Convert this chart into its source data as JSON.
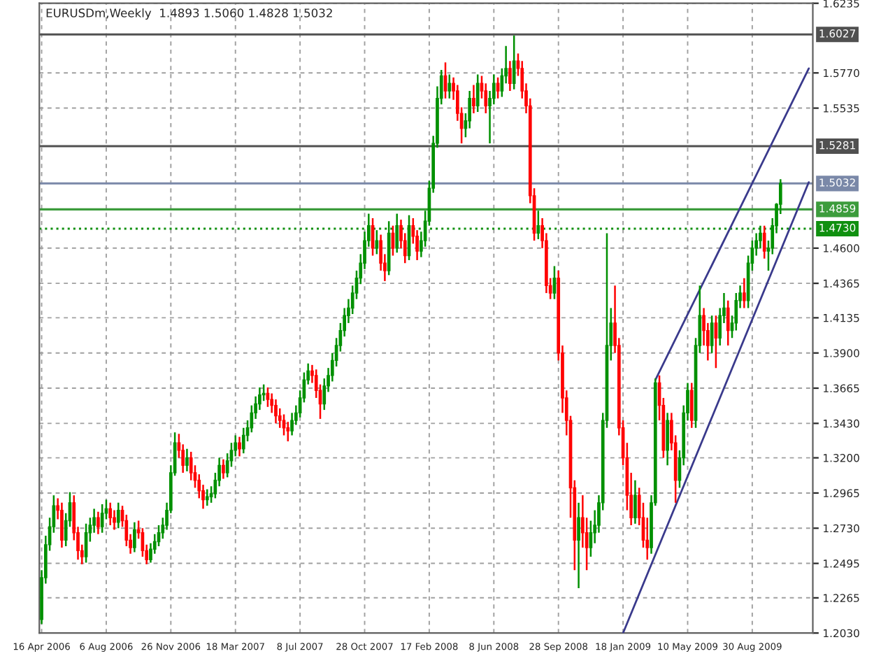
{
  "chart_data": {
    "type": "candlestick",
    "title": "EURUSDm,Weekly  1.4893 1.5060 1.4828 1.5032",
    "x": [
      "2006-04-16",
      "2006-04-23",
      "2006-04-30",
      "2006-05-07",
      "2006-05-14",
      "2006-05-21",
      "2006-05-28",
      "2006-06-04",
      "2006-06-11",
      "2006-06-18",
      "2006-06-25",
      "2006-07-02",
      "2006-07-09",
      "2006-07-16",
      "2006-07-23",
      "2006-07-30",
      "2006-08-06",
      "2006-08-13",
      "2006-08-20",
      "2006-08-27",
      "2006-09-03",
      "2006-09-10",
      "2006-09-17",
      "2006-09-24",
      "2006-10-01",
      "2006-10-08",
      "2006-10-15",
      "2006-10-22",
      "2006-10-29",
      "2006-11-05",
      "2006-11-12",
      "2006-11-19",
      "2006-11-26",
      "2006-12-03",
      "2006-12-10",
      "2006-12-17",
      "2006-12-24",
      "2006-12-31",
      "2007-01-07",
      "2007-01-14",
      "2007-01-21",
      "2007-01-28",
      "2007-02-04",
      "2007-02-11",
      "2007-02-18",
      "2007-02-25",
      "2007-03-04",
      "2007-03-11",
      "2007-03-18",
      "2007-03-25",
      "2007-04-01",
      "2007-04-08",
      "2007-04-15",
      "2007-04-22",
      "2007-04-29",
      "2007-05-06",
      "2007-05-13",
      "2007-05-20",
      "2007-05-27",
      "2007-06-03",
      "2007-06-10",
      "2007-06-17",
      "2007-06-24",
      "2007-07-01",
      "2007-07-08",
      "2007-07-15",
      "2007-07-22",
      "2007-07-29",
      "2007-08-05",
      "2007-08-12",
      "2007-08-19",
      "2007-08-26",
      "2007-09-02",
      "2007-09-09",
      "2007-09-16",
      "2007-09-23",
      "2007-09-30",
      "2007-10-07",
      "2007-10-14",
      "2007-10-21",
      "2007-10-28",
      "2007-11-04",
      "2007-11-11",
      "2007-11-18",
      "2007-11-25",
      "2007-12-02",
      "2007-12-09",
      "2007-12-16",
      "2007-12-23",
      "2007-12-30",
      "2008-01-06",
      "2008-01-13",
      "2008-01-20",
      "2008-01-27",
      "2008-02-03",
      "2008-02-10",
      "2008-02-17",
      "2008-02-24",
      "2008-03-02",
      "2008-03-09",
      "2008-03-16",
      "2008-03-23",
      "2008-03-30",
      "2008-04-06",
      "2008-04-13",
      "2008-04-20",
      "2008-04-27",
      "2008-05-04",
      "2008-05-11",
      "2008-05-18",
      "2008-05-25",
      "2008-06-01",
      "2008-06-08",
      "2008-06-15",
      "2008-06-22",
      "2008-06-29",
      "2008-07-06",
      "2008-07-13",
      "2008-07-20",
      "2008-07-27",
      "2008-08-03",
      "2008-08-10",
      "2008-08-17",
      "2008-08-24",
      "2008-08-31",
      "2008-09-07",
      "2008-09-14",
      "2008-09-21",
      "2008-09-28",
      "2008-10-05",
      "2008-10-12",
      "2008-10-19",
      "2008-10-26",
      "2008-11-02",
      "2008-11-09",
      "2008-11-16",
      "2008-11-23",
      "2008-11-30",
      "2008-12-07",
      "2008-12-14",
      "2008-12-21",
      "2008-12-28",
      "2009-01-04",
      "2009-01-11",
      "2009-01-18",
      "2009-01-25",
      "2009-02-01",
      "2009-02-08",
      "2009-02-15",
      "2009-02-22",
      "2009-03-01",
      "2009-03-08",
      "2009-03-15",
      "2009-03-22",
      "2009-03-29",
      "2009-04-05",
      "2009-04-12",
      "2009-04-19",
      "2009-04-26",
      "2009-05-03",
      "2009-05-10",
      "2009-05-17",
      "2009-05-24",
      "2009-05-31",
      "2009-06-07",
      "2009-06-14",
      "2009-06-21",
      "2009-06-28",
      "2009-07-05",
      "2009-07-12",
      "2009-07-19",
      "2009-07-26",
      "2009-08-02",
      "2009-08-09",
      "2009-08-16",
      "2009-08-23",
      "2009-08-30",
      "2009-09-06",
      "2009-09-13",
      "2009-09-20",
      "2009-09-27",
      "2009-10-04",
      "2009-10-11",
      "2009-10-18"
    ],
    "ohlc": [
      [
        1.212,
        1.245,
        1.209,
        1.24
      ],
      [
        1.24,
        1.268,
        1.236,
        1.262
      ],
      [
        1.262,
        1.28,
        1.258,
        1.274
      ],
      [
        1.274,
        1.295,
        1.27,
        1.288
      ],
      [
        1.288,
        1.293,
        1.279,
        1.285
      ],
      [
        1.285,
        1.29,
        1.26,
        1.265
      ],
      [
        1.265,
        1.283,
        1.261,
        1.278
      ],
      [
        1.278,
        1.297,
        1.274,
        1.29
      ],
      [
        1.29,
        1.295,
        1.265,
        1.27
      ],
      [
        1.27,
        1.274,
        1.252,
        1.258
      ],
      [
        1.258,
        1.262,
        1.249,
        1.254
      ],
      [
        1.254,
        1.276,
        1.25,
        1.27
      ],
      [
        1.27,
        1.28,
        1.264,
        1.275
      ],
      [
        1.275,
        1.286,
        1.27,
        1.28
      ],
      [
        1.28,
        1.284,
        1.269,
        1.274
      ],
      [
        1.274,
        1.289,
        1.27,
        1.283
      ],
      [
        1.283,
        1.292,
        1.279,
        1.286
      ],
      [
        1.286,
        1.29,
        1.275,
        1.28
      ],
      [
        1.28,
        1.285,
        1.272,
        1.277
      ],
      [
        1.277,
        1.29,
        1.273,
        1.285
      ],
      [
        1.285,
        1.288,
        1.274,
        1.278
      ],
      [
        1.278,
        1.282,
        1.261,
        1.265
      ],
      [
        1.265,
        1.269,
        1.256,
        1.26
      ],
      [
        1.26,
        1.277,
        1.257,
        1.272
      ],
      [
        1.272,
        1.278,
        1.266,
        1.27
      ],
      [
        1.27,
        1.273,
        1.254,
        1.258
      ],
      [
        1.258,
        1.262,
        1.249,
        1.252
      ],
      [
        1.252,
        1.263,
        1.25,
        1.259
      ],
      [
        1.259,
        1.269,
        1.256,
        1.264
      ],
      [
        1.264,
        1.275,
        1.261,
        1.27
      ],
      [
        1.27,
        1.28,
        1.266,
        1.275
      ],
      [
        1.275,
        1.29,
        1.272,
        1.285
      ],
      [
        1.285,
        1.315,
        1.283,
        1.31
      ],
      [
        1.31,
        1.337,
        1.308,
        1.33
      ],
      [
        1.33,
        1.336,
        1.32,
        1.325
      ],
      [
        1.325,
        1.329,
        1.31,
        1.315
      ],
      [
        1.315,
        1.326,
        1.311,
        1.32
      ],
      [
        1.32,
        1.324,
        1.305,
        1.31
      ],
      [
        1.31,
        1.315,
        1.3,
        1.305
      ],
      [
        1.305,
        1.309,
        1.293,
        1.298
      ],
      [
        1.298,
        1.302,
        1.286,
        1.292
      ],
      [
        1.292,
        1.299,
        1.288,
        1.294
      ],
      [
        1.294,
        1.301,
        1.29,
        1.296
      ],
      [
        1.296,
        1.31,
        1.293,
        1.305
      ],
      [
        1.305,
        1.32,
        1.301,
        1.315
      ],
      [
        1.315,
        1.319,
        1.306,
        1.31
      ],
      [
        1.31,
        1.323,
        1.307,
        1.318
      ],
      [
        1.318,
        1.33,
        1.314,
        1.325
      ],
      [
        1.325,
        1.335,
        1.321,
        1.33
      ],
      [
        1.33,
        1.334,
        1.321,
        1.326
      ],
      [
        1.326,
        1.34,
        1.323,
        1.335
      ],
      [
        1.335,
        1.345,
        1.331,
        1.34
      ],
      [
        1.34,
        1.355,
        1.337,
        1.35
      ],
      [
        1.35,
        1.361,
        1.346,
        1.356
      ],
      [
        1.356,
        1.367,
        1.352,
        1.362
      ],
      [
        1.362,
        1.369,
        1.358,
        1.363
      ],
      [
        1.363,
        1.367,
        1.354,
        1.359
      ],
      [
        1.359,
        1.363,
        1.35,
        1.355
      ],
      [
        1.355,
        1.359,
        1.343,
        1.348
      ],
      [
        1.348,
        1.353,
        1.34,
        1.345
      ],
      [
        1.345,
        1.349,
        1.335,
        1.34
      ],
      [
        1.34,
        1.344,
        1.331,
        1.338
      ],
      [
        1.338,
        1.35,
        1.335,
        1.345
      ],
      [
        1.345,
        1.355,
        1.342,
        1.35
      ],
      [
        1.35,
        1.365,
        1.347,
        1.36
      ],
      [
        1.36,
        1.377,
        1.357,
        1.372
      ],
      [
        1.372,
        1.383,
        1.369,
        1.378
      ],
      [
        1.378,
        1.382,
        1.37,
        1.375
      ],
      [
        1.375,
        1.379,
        1.36,
        1.365
      ],
      [
        1.365,
        1.369,
        1.346,
        1.356
      ],
      [
        1.356,
        1.373,
        1.352,
        1.368
      ],
      [
        1.368,
        1.38,
        1.364,
        1.375
      ],
      [
        1.375,
        1.39,
        1.371,
        1.385
      ],
      [
        1.385,
        1.4,
        1.381,
        1.395
      ],
      [
        1.395,
        1.41,
        1.391,
        1.405
      ],
      [
        1.405,
        1.42,
        1.401,
        1.415
      ],
      [
        1.415,
        1.426,
        1.41,
        1.42
      ],
      [
        1.42,
        1.435,
        1.416,
        1.43
      ],
      [
        1.43,
        1.445,
        1.426,
        1.44
      ],
      [
        1.44,
        1.456,
        1.436,
        1.45
      ],
      [
        1.45,
        1.471,
        1.446,
        1.465
      ],
      [
        1.465,
        1.483,
        1.461,
        1.475
      ],
      [
        1.475,
        1.48,
        1.455,
        1.46
      ],
      [
        1.46,
        1.472,
        1.456,
        1.465
      ],
      [
        1.465,
        1.469,
        1.445,
        1.45
      ],
      [
        1.45,
        1.456,
        1.438,
        1.445
      ],
      [
        1.445,
        1.478,
        1.442,
        1.47
      ],
      [
        1.47,
        1.475,
        1.455,
        1.46
      ],
      [
        1.46,
        1.483,
        1.457,
        1.475
      ],
      [
        1.475,
        1.479,
        1.46,
        1.465
      ],
      [
        1.465,
        1.47,
        1.45,
        1.455
      ],
      [
        1.455,
        1.482,
        1.452,
        1.475
      ],
      [
        1.475,
        1.48,
        1.463,
        1.468
      ],
      [
        1.468,
        1.472,
        1.452,
        1.458
      ],
      [
        1.458,
        1.471,
        1.454,
        1.465
      ],
      [
        1.465,
        1.485,
        1.461,
        1.478
      ],
      [
        1.478,
        1.505,
        1.475,
        1.5
      ],
      [
        1.5,
        1.535,
        1.497,
        1.53
      ],
      [
        1.53,
        1.568,
        1.527,
        1.56
      ],
      [
        1.56,
        1.579,
        1.556,
        1.575
      ],
      [
        1.575,
        1.584,
        1.56,
        1.565
      ],
      [
        1.565,
        1.576,
        1.56,
        1.57
      ],
      [
        1.57,
        1.574,
        1.559,
        1.565
      ],
      [
        1.565,
        1.569,
        1.545,
        1.55
      ],
      [
        1.55,
        1.554,
        1.53,
        1.54
      ],
      [
        1.54,
        1.55,
        1.534,
        1.545
      ],
      [
        1.545,
        1.565,
        1.54,
        1.56
      ],
      [
        1.56,
        1.569,
        1.55,
        1.555
      ],
      [
        1.555,
        1.576,
        1.551,
        1.57
      ],
      [
        1.57,
        1.575,
        1.56,
        1.565
      ],
      [
        1.565,
        1.57,
        1.55,
        1.555
      ],
      [
        1.555,
        1.565,
        1.53,
        1.56
      ],
      [
        1.56,
        1.576,
        1.556,
        1.57
      ],
      [
        1.57,
        1.574,
        1.56,
        1.565
      ],
      [
        1.565,
        1.58,
        1.561,
        1.575
      ],
      [
        1.575,
        1.595,
        1.57,
        1.58
      ],
      [
        1.58,
        1.585,
        1.565,
        1.57
      ],
      [
        1.57,
        1.602,
        1.566,
        1.585
      ],
      [
        1.585,
        1.59,
        1.575,
        1.58
      ],
      [
        1.58,
        1.585,
        1.56,
        1.565
      ],
      [
        1.565,
        1.57,
        1.55,
        1.555
      ],
      [
        1.555,
        1.56,
        1.49,
        1.495
      ],
      [
        1.495,
        1.5,
        1.465,
        1.47
      ],
      [
        1.47,
        1.485,
        1.466,
        1.475
      ],
      [
        1.475,
        1.48,
        1.46,
        1.465
      ],
      [
        1.465,
        1.47,
        1.43,
        1.435
      ],
      [
        1.435,
        1.44,
        1.426,
        1.43
      ],
      [
        1.43,
        1.448,
        1.426,
        1.44
      ],
      [
        1.44,
        1.445,
        1.385,
        1.39
      ],
      [
        1.39,
        1.395,
        1.35,
        1.36
      ],
      [
        1.36,
        1.365,
        1.335,
        1.345
      ],
      [
        1.345,
        1.348,
        1.28,
        1.3
      ],
      [
        1.3,
        1.305,
        1.245,
        1.265
      ],
      [
        1.265,
        1.29,
        1.233,
        1.28
      ],
      [
        1.28,
        1.295,
        1.26,
        1.27
      ],
      [
        1.27,
        1.28,
        1.245,
        1.26
      ],
      [
        1.26,
        1.278,
        1.254,
        1.27
      ],
      [
        1.27,
        1.285,
        1.263,
        1.275
      ],
      [
        1.275,
        1.295,
        1.27,
        1.29
      ],
      [
        1.29,
        1.35,
        1.285,
        1.345
      ],
      [
        1.345,
        1.47,
        1.34,
        1.395
      ],
      [
        1.395,
        1.42,
        1.385,
        1.41
      ],
      [
        1.41,
        1.435,
        1.39,
        1.395
      ],
      [
        1.395,
        1.4,
        1.335,
        1.34
      ],
      [
        1.34,
        1.345,
        1.315,
        1.32
      ],
      [
        1.32,
        1.33,
        1.285,
        1.295
      ],
      [
        1.295,
        1.31,
        1.275,
        1.28
      ],
      [
        1.28,
        1.305,
        1.276,
        1.295
      ],
      [
        1.295,
        1.3,
        1.275,
        1.28
      ],
      [
        1.28,
        1.29,
        1.26,
        1.265
      ],
      [
        1.265,
        1.28,
        1.252,
        1.26
      ],
      [
        1.26,
        1.295,
        1.256,
        1.29
      ],
      [
        1.29,
        1.373,
        1.288,
        1.37
      ],
      [
        1.37,
        1.375,
        1.345,
        1.355
      ],
      [
        1.355,
        1.36,
        1.32,
        1.325
      ],
      [
        1.325,
        1.35,
        1.315,
        1.345
      ],
      [
        1.345,
        1.35,
        1.325,
        1.33
      ],
      [
        1.33,
        1.335,
        1.29,
        1.305
      ],
      [
        1.305,
        1.325,
        1.3,
        1.32
      ],
      [
        1.32,
        1.355,
        1.315,
        1.35
      ],
      [
        1.35,
        1.37,
        1.345,
        1.365
      ],
      [
        1.365,
        1.37,
        1.34,
        1.345
      ],
      [
        1.345,
        1.4,
        1.34,
        1.395
      ],
      [
        1.395,
        1.435,
        1.39,
        1.415
      ],
      [
        1.415,
        1.42,
        1.395,
        1.405
      ],
      [
        1.405,
        1.41,
        1.385,
        1.395
      ],
      [
        1.395,
        1.415,
        1.39,
        1.41
      ],
      [
        1.41,
        1.415,
        1.38,
        1.4
      ],
      [
        1.4,
        1.42,
        1.395,
        1.415
      ],
      [
        1.415,
        1.43,
        1.41,
        1.42
      ],
      [
        1.42,
        1.425,
        1.395,
        1.405
      ],
      [
        1.405,
        1.415,
        1.4,
        1.41
      ],
      [
        1.41,
        1.43,
        1.405,
        1.425
      ],
      [
        1.425,
        1.435,
        1.42,
        1.43
      ],
      [
        1.43,
        1.44,
        1.42,
        1.425
      ],
      [
        1.425,
        1.455,
        1.42,
        1.45
      ],
      [
        1.45,
        1.465,
        1.445,
        1.46
      ],
      [
        1.46,
        1.47,
        1.455,
        1.465
      ],
      [
        1.465,
        1.475,
        1.46,
        1.47
      ],
      [
        1.47,
        1.475,
        1.453,
        1.458
      ],
      [
        1.458,
        1.465,
        1.445,
        1.46
      ],
      [
        1.46,
        1.48,
        1.456,
        1.475
      ],
      [
        1.475,
        1.49,
        1.47,
        1.4893
      ],
      [
        1.4893,
        1.506,
        1.4828,
        1.5032
      ]
    ],
    "series": [
      {
        "type": "line",
        "color": "#3a3a8c",
        "x": [
          "2009-01-18",
          "2009-12-06"
        ],
        "values": [
          1.203,
          1.504
        ]
      },
      {
        "type": "line",
        "color": "#3a3a8c",
        "x": [
          "2009-03-15",
          "2009-12-06"
        ],
        "values": [
          1.372,
          1.58
        ]
      }
    ],
    "xlim": [
      "2006-04-12",
      "2009-12-13"
    ],
    "xticks": [
      {
        "value": "2006-04-16",
        "label": "16 Apr 2006"
      },
      {
        "value": "2006-08-06",
        "label": "6 Aug 2006"
      },
      {
        "value": "2006-11-26",
        "label": "26 Nov 2006"
      },
      {
        "value": "2007-03-18",
        "label": "18 Mar 2007"
      },
      {
        "value": "2007-07-08",
        "label": "8 Jul 2007"
      },
      {
        "value": "2007-10-28",
        "label": "28 Oct 2007"
      },
      {
        "value": "2008-02-17",
        "label": "17 Feb 2008"
      },
      {
        "value": "2008-06-08",
        "label": "8 Jun 2008"
      },
      {
        "value": "2008-09-28",
        "label": "28 Sep 2008"
      },
      {
        "value": "2009-01-18",
        "label": "18 Jan 2009"
      },
      {
        "value": "2009-05-10",
        "label": "10 May 2009"
      },
      {
        "value": "2009-08-30",
        "label": "30 Aug 2009"
      }
    ],
    "ylim": [
      1.203,
      1.6235
    ],
    "yticks": [
      {
        "value": 1.203,
        "label": "1.2030"
      },
      1.2265,
      1.2495,
      {
        "value": 1.273,
        "label": "1.2730"
      },
      1.2965,
      {
        "value": 1.32,
        "label": "1.3200"
      },
      {
        "value": 1.343,
        "label": "1.3430"
      },
      1.3665,
      {
        "value": 1.39,
        "label": "1.3900"
      },
      1.4135,
      1.4365,
      {
        "value": 1.46,
        "label": "1.4600"
      },
      1.5535,
      {
        "value": 1.577,
        "label": "1.5770"
      },
      1.6235
    ],
    "ref_lines": [
      {
        "axis": "y",
        "value": 1.6027,
        "label": "1.6027",
        "color": "#505050",
        "line_style": "solid"
      },
      {
        "axis": "y",
        "value": 1.5281,
        "label": "1.5281",
        "color": "#505050",
        "line_style": "solid"
      },
      {
        "axis": "y",
        "value": 1.5032,
        "label": "1.5032",
        "color": "#7a88a8",
        "line_style": "solid"
      },
      {
        "axis": "y",
        "value": 1.4859,
        "label": "1.4859",
        "color": "#3c9c3c",
        "line_style": "solid"
      },
      {
        "axis": "y",
        "value": 1.473,
        "label": "1.4730",
        "color": "#109010",
        "line_style": "dotted"
      }
    ],
    "grid": true
  }
}
